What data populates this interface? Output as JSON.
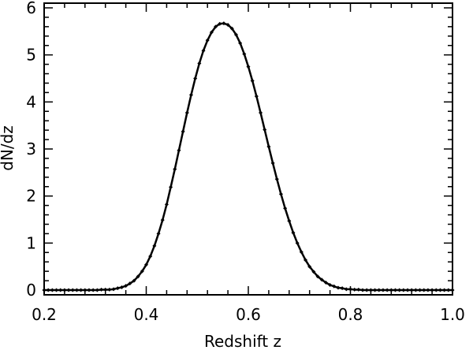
{
  "chart_data": {
    "type": "line",
    "title": "",
    "xlabel": "Redshift  z",
    "ylabel": "dN/dz",
    "xlim": [
      0.2,
      1.0
    ],
    "ylim": [
      -0.1,
      6.1
    ],
    "xticks": [
      0.2,
      0.4,
      0.6,
      0.8,
      1.0
    ],
    "xtick_labels": [
      "0.2",
      "0.4",
      "0.6",
      "0.8",
      "1.0"
    ],
    "yticks": [
      0,
      1,
      2,
      3,
      4,
      5,
      6
    ],
    "ytick_labels": [
      "0",
      "1",
      "2",
      "3",
      "4",
      "5",
      "6"
    ],
    "grid": false,
    "legend": "none",
    "line_color": "#000000",
    "marker": "small-diamond",
    "series": [
      {
        "x": [
          0.2,
          0.208,
          0.216,
          0.224,
          0.232,
          0.24,
          0.248,
          0.256,
          0.264,
          0.272,
          0.28,
          0.288,
          0.296,
          0.304,
          0.312,
          0.32,
          0.328,
          0.336,
          0.344,
          0.352,
          0.36,
          0.368,
          0.376,
          0.384,
          0.392,
          0.4,
          0.408,
          0.416,
          0.424,
          0.432,
          0.44,
          0.448,
          0.456,
          0.464,
          0.472,
          0.48,
          0.488,
          0.496,
          0.504,
          0.512,
          0.52,
          0.528,
          0.536,
          0.544,
          0.552,
          0.56,
          0.568,
          0.576,
          0.584,
          0.592,
          0.6,
          0.608,
          0.616,
          0.624,
          0.632,
          0.64,
          0.648,
          0.656,
          0.664,
          0.672,
          0.68,
          0.688,
          0.696,
          0.704,
          0.712,
          0.72,
          0.728,
          0.736,
          0.744,
          0.752,
          0.76,
          0.768,
          0.776,
          0.784,
          0.792,
          0.8,
          0.808,
          0.816,
          0.824,
          0.832,
          0.84,
          0.848,
          0.856,
          0.864,
          0.872,
          0.88,
          0.888,
          0.896,
          0.904,
          0.912,
          0.92,
          0.928,
          0.936,
          0.944,
          0.952,
          0.96,
          0.968,
          0.976,
          0.984,
          0.992,
          1.0
        ],
        "y": [
          0.0,
          0.0,
          0.0,
          0.0,
          0.0,
          0.0,
          0.0,
          0.0,
          0.0,
          0.0,
          0.0,
          0.0,
          0.0,
          0.0,
          0.01,
          0.01,
          0.01,
          0.02,
          0.04,
          0.06,
          0.09,
          0.14,
          0.2,
          0.29,
          0.4,
          0.54,
          0.72,
          0.94,
          1.2,
          1.49,
          1.82,
          2.19,
          2.57,
          2.97,
          3.37,
          3.77,
          4.15,
          4.5,
          4.82,
          5.09,
          5.31,
          5.48,
          5.6,
          5.66,
          5.67,
          5.64,
          5.56,
          5.43,
          5.25,
          5.02,
          4.75,
          4.45,
          4.12,
          3.77,
          3.41,
          3.05,
          2.7,
          2.36,
          2.04,
          1.74,
          1.47,
          1.22,
          1.0,
          0.81,
          0.64,
          0.5,
          0.39,
          0.29,
          0.22,
          0.16,
          0.11,
          0.08,
          0.05,
          0.04,
          0.02,
          0.02,
          0.01,
          0.01,
          0.0,
          0.0,
          0.0,
          0.0,
          0.0,
          0.0,
          0.0,
          0.0,
          0.0,
          0.0,
          0.0,
          0.0,
          0.0,
          0.0,
          0.0,
          0.0,
          0.0,
          0.0,
          0.0,
          0.0,
          0.0,
          0.0,
          0.0
        ]
      }
    ]
  }
}
